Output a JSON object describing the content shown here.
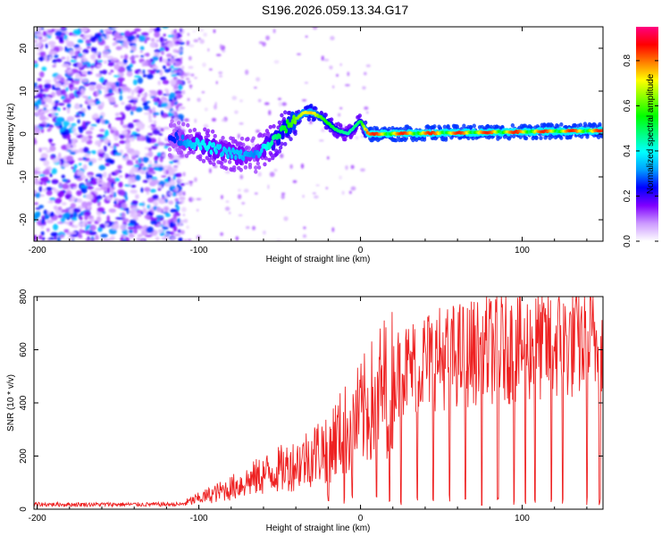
{
  "title": "S196.2026.059.13.34.G17",
  "chart_data": [
    {
      "type": "heatmap",
      "xlabel": "Height of straight line (km)",
      "ylabel": "Frequency (Hz)",
      "xlim": [
        -202,
        150
      ],
      "ylim": [
        -25,
        25
      ],
      "xticks": [
        -200,
        -100,
        0,
        100
      ],
      "xtick_labels": [
        "-200",
        "-100",
        "0",
        "100"
      ],
      "yticks": [
        -20,
        -10,
        0,
        10,
        20
      ],
      "ytick_labels": [
        "-20",
        "-10",
        "0",
        "10",
        "20"
      ],
      "colorbar": {
        "label": "Normalized spectral amplitude",
        "range": [
          0,
          0.95
        ],
        "ticks": [
          0.0,
          0.2,
          0.4,
          0.6,
          0.8
        ],
        "tick_labels": [
          "0.0",
          "0.2",
          "0.4",
          "0.6",
          "0.8"
        ],
        "colors": [
          "#ffffff",
          "#cc99ff",
          "#7f00ff",
          "#0000ff",
          "#00a0ff",
          "#00ffff",
          "#00ff80",
          "#00ff00",
          "#80ff00",
          "#ffff00",
          "#ff8000",
          "#ff0000",
          "#ff0080"
        ]
      },
      "ridge": {
        "x": [
          -115,
          -105,
          -95,
          -85,
          -75,
          -65,
          -55,
          -45,
          -35,
          -30,
          -25,
          -15,
          -8,
          0,
          5,
          150
        ],
        "frequency": [
          -1,
          -2,
          -3,
          -4,
          -5,
          -5,
          -2,
          2,
          5,
          5,
          4,
          1,
          0,
          3,
          0,
          0.8
        ],
        "amplitude": [
          0.25,
          0.35,
          0.4,
          0.35,
          0.35,
          0.3,
          0.45,
          0.55,
          0.7,
          0.75,
          0.6,
          0.5,
          0.45,
          0.5,
          0.85,
          0.85
        ]
      },
      "noise_region_x": [
        -202,
        -115
      ]
    },
    {
      "type": "line",
      "xlabel": "Height of straight line (km)",
      "ylabel": "SNR (10 * v/v)",
      "xlim": [
        -202,
        150
      ],
      "ylim": [
        0,
        800
      ],
      "xticks": [
        -200,
        -100,
        0,
        100
      ],
      "xtick_labels": [
        "-200",
        "-100",
        "0",
        "100"
      ],
      "yticks": [
        0,
        200,
        400,
        600,
        800
      ],
      "ytick_labels": [
        "0",
        "200",
        "400",
        "600",
        "800"
      ],
      "color": "#ee2222",
      "envelope": {
        "x": [
          -202,
          -110,
          -100,
          -80,
          -60,
          -40,
          -20,
          0,
          20,
          40,
          60,
          80,
          100,
          120,
          150
        ],
        "snr": [
          20,
          20,
          40,
          80,
          130,
          170,
          240,
          350,
          500,
          560,
          580,
          600,
          610,
          620,
          630
        ]
      },
      "dropouts_x": [
        -20,
        -10,
        -5,
        10,
        18,
        25,
        35,
        45,
        55,
        65,
        75,
        85,
        95,
        102,
        108,
        118,
        125,
        140,
        148
      ]
    }
  ]
}
